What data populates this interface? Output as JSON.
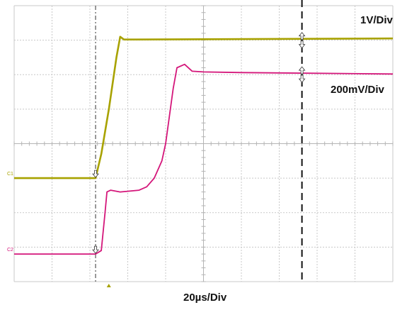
{
  "chart_data": {
    "type": "line",
    "title": "",
    "xlabel": "20µs/Div",
    "x_unit": "div",
    "xlim": [
      0,
      10
    ],
    "ylim": [
      -4,
      4
    ],
    "grid": true,
    "channel_markers": [
      "C1",
      "C2"
    ],
    "scale_labels": {
      "ch1": "1V/Div",
      "ch2": "200mV/Div",
      "time": "20µs/Div"
    },
    "cursors_x": [
      2.15,
      7.6
    ],
    "trigger_x": 2.5,
    "series": [
      {
        "color": "#a8a200",
        "x": [
          0,
          2.15,
          2.3,
          2.5,
          2.7,
          2.8,
          2.9,
          3.2,
          10
        ],
        "y": [
          -1.0,
          -1.0,
          -0.3,
          1.0,
          2.5,
          3.1,
          3.02,
          3.02,
          3.05
        ]
      },
      {
        "color": "#d4167a",
        "x": [
          0,
          2.15,
          2.3,
          2.4,
          2.45,
          2.55,
          2.8,
          3.3,
          3.5,
          3.7,
          3.9,
          4.0,
          4.2,
          4.3,
          4.5,
          4.7,
          5.0,
          6.0,
          10
        ],
        "y": [
          -3.2,
          -3.2,
          -3.1,
          -2.0,
          -1.4,
          -1.35,
          -1.4,
          -1.35,
          -1.25,
          -1.0,
          -0.5,
          0.0,
          1.6,
          2.2,
          2.3,
          2.1,
          2.08,
          2.06,
          2.02
        ]
      }
    ]
  }
}
